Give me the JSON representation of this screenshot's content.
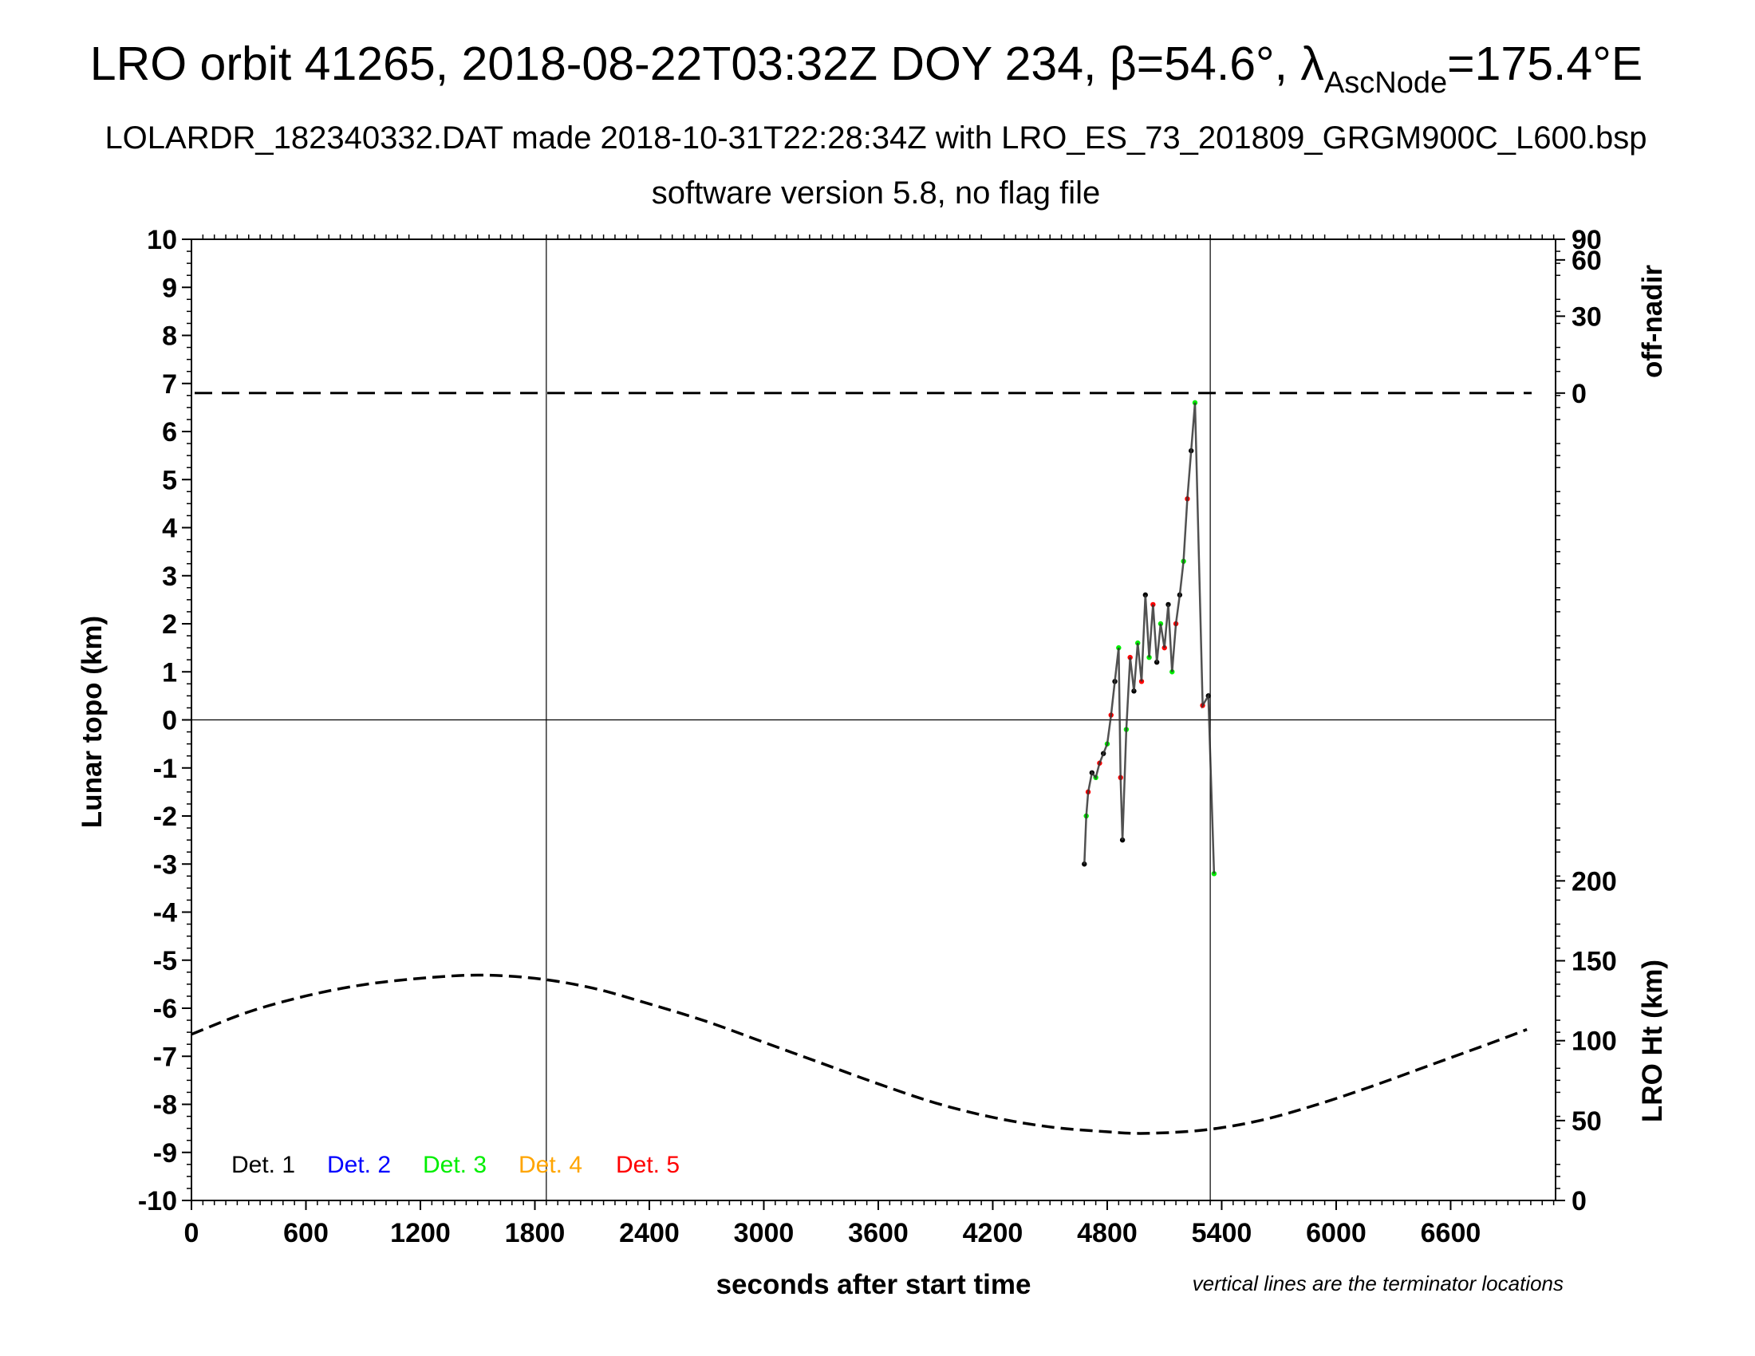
{
  "header": {
    "title_main": "LRO orbit 41265, 2018-08-22T03:32Z DOY 234, β=54.6°, λ",
    "title_sub": "AscNode",
    "title_end": "=175.4°E",
    "line2": "LOLARDR_182340332.DAT made 2018-10-31T22:28:34Z with LRO_ES_73_201809_GRGM900C_L600.bsp",
    "line3": "software version 5.8, no flag file"
  },
  "axes": {
    "xlabel": "seconds after start time",
    "ylabel_left": "Lunar topo (km)",
    "ylabel_right_top": "off-nadir",
    "ylabel_right_bottom": "LRO Ht (km)",
    "note": "vertical lines are the terminator locations",
    "x_ticks": [
      "0",
      "600",
      "1200",
      "1800",
      "2400",
      "3000",
      "3600",
      "4200",
      "4800",
      "5400",
      "6000",
      "6600"
    ],
    "y_ticks": [
      "10",
      "9",
      "8",
      "7",
      "6",
      "5",
      "4",
      "3",
      "2",
      "1",
      "0",
      "-1",
      "-2",
      "-3",
      "-4",
      "-5",
      "-6",
      "-7",
      "-8",
      "-9",
      "-10"
    ],
    "right_top_ticks": [
      "90",
      "60",
      "30",
      "0"
    ],
    "right_bottom_ticks": [
      "200",
      "150",
      "100",
      "50",
      "0"
    ]
  },
  "legend": [
    {
      "label": "Det. 1",
      "color": "#000000"
    },
    {
      "label": "Det. 2",
      "color": "#0000ff"
    },
    {
      "label": "Det. 3",
      "color": "#00ee00"
    },
    {
      "label": "Det. 4",
      "color": "#ffa500"
    },
    {
      "label": "Det. 5",
      "color": "#ff0000"
    }
  ],
  "chart_data": {
    "type": "scatter",
    "xlim": [
      0,
      7150
    ],
    "ylim": [
      -10,
      10
    ],
    "grid": false,
    "legend_position": "bottom-left",
    "terminator_x": [
      1860,
      5340
    ],
    "offnadir_deg": 0,
    "offnadir_axis": {
      "deg_ticks": [
        0,
        30,
        60,
        90
      ],
      "y_for_0": 6.8,
      "y_for_90": 10
    },
    "lro_height_axis": {
      "km_ticks": [
        0,
        50,
        100,
        150,
        200
      ],
      "y_for_0": -10,
      "y_for_200": -3.35
    },
    "lro_height_km": {
      "x": [
        0,
        300,
        600,
        900,
        1200,
        1500,
        1800,
        2100,
        2400,
        2700,
        3000,
        3300,
        3600,
        3900,
        4200,
        4500,
        4800,
        5000,
        5300,
        5600,
        5900,
        6200,
        6500,
        6800,
        7000
      ],
      "y": [
        104,
        118,
        128,
        135,
        139,
        141,
        139,
        133,
        123,
        112,
        99,
        86,
        73,
        61,
        52,
        46,
        43,
        42,
        44,
        50,
        60,
        72,
        85,
        98,
        107
      ]
    },
    "topo_km": {
      "x": [
        4680,
        4690,
        4700,
        4720,
        4740,
        4760,
        4780,
        4800,
        4820,
        4840,
        4860,
        4870,
        4880,
        4900,
        4920,
        4940,
        4960,
        4980,
        5000,
        5020,
        5040,
        5060,
        5080,
        5100,
        5120,
        5140,
        5160,
        5180,
        5200,
        5220,
        5240,
        5260,
        5300,
        5330,
        5360
      ],
      "y": [
        -3.0,
        -2.0,
        -1.5,
        -1.1,
        -1.2,
        -0.9,
        -0.7,
        -0.5,
        0.1,
        0.8,
        1.5,
        -1.2,
        -2.5,
        -0.2,
        1.3,
        0.6,
        1.6,
        0.8,
        2.6,
        1.3,
        2.4,
        1.2,
        2.0,
        1.5,
        2.4,
        1.0,
        2.0,
        2.6,
        3.3,
        4.6,
        5.6,
        6.6,
        0.3,
        0.5,
        -3.2
      ]
    }
  }
}
